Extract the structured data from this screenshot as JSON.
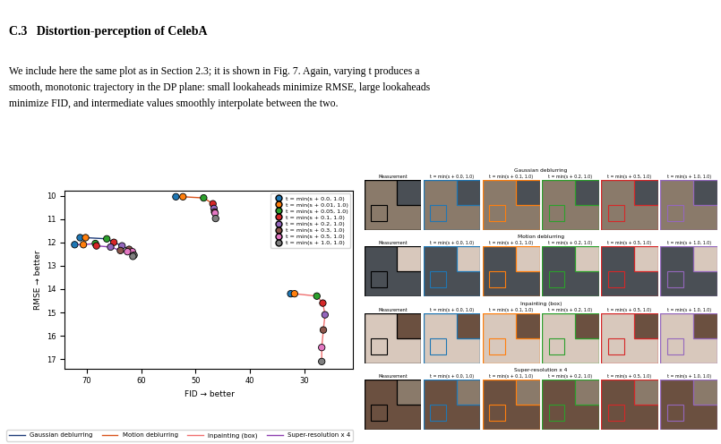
{
  "document": {
    "heading": "C.3   Distortion-perception of CelebA",
    "paragraph": [
      "We include here the same plot as in Section 2.3; it is shown in Fig. 7. Again, varying t produces a",
      "smooth, monotonic trajectory in the DP plane: small lookaheads minimize RMSE, large lookaheads",
      "minimize FID, and intermediate values smoothly interpolate between the two."
    ]
  },
  "chart_data": {
    "type": "line",
    "marker": "o",
    "xlabel": "FID → better",
    "ylabel": "RMSE → better",
    "xlim": [
      74,
      21
    ],
    "ylim": [
      17.4,
      9.8
    ],
    "xticks": [
      70,
      60,
      50,
      40,
      30
    ],
    "yticks": [
      10,
      11,
      12,
      13,
      14,
      15,
      16,
      17
    ],
    "grid": false,
    "legend": "upper right",
    "point_labels": [
      {
        "name": "t = min(s + 0.0, 1.0)",
        "color": "#1f77b4"
      },
      {
        "name": "t = min(s + 0.01, 1.0)",
        "color": "#ff7f0e"
      },
      {
        "name": "t = min(s + 0.05, 1.0)",
        "color": "#2ca02c"
      },
      {
        "name": "t = min(s + 0.1, 1.0)",
        "color": "#d62728"
      },
      {
        "name": "t = min(s + 0.2, 1.0)",
        "color": "#9467bd"
      },
      {
        "name": "t = min(s + 0.3, 1.0)",
        "color": "#8c564b"
      },
      {
        "name": "t = min(s + 0.5, 1.0)",
        "color": "#e377c2"
      },
      {
        "name": "t = min(s + 1.0, 1.0)",
        "color": "#7f7f7f"
      }
    ],
    "series": [
      {
        "name": "Gaussian deblurring",
        "color": "#1f3d7a",
        "x": [
          71.2,
          70.2,
          66.3,
          65.0,
          63.5,
          62.2,
          61.6,
          61.3
        ],
        "values": [
          11.8,
          11.8,
          11.85,
          12.0,
          12.15,
          12.3,
          12.4,
          12.55
        ]
      },
      {
        "name": "Motion deblurring",
        "color": "#d9541e",
        "x": [
          53.6,
          52.3,
          48.5,
          46.8,
          46.6,
          46.5,
          46.4,
          46.3
        ],
        "values": [
          10.05,
          10.05,
          10.1,
          10.35,
          10.55,
          10.7,
          10.75,
          10.98
        ]
      },
      {
        "name": "Inpainting (box)",
        "color": "#f07070",
        "x": [
          32.5,
          31.8,
          27.7,
          26.6,
          26.2,
          26.5,
          26.8,
          26.8
        ],
        "values": [
          14.2,
          14.2,
          14.3,
          14.6,
          15.1,
          15.75,
          16.5,
          17.1
        ]
      },
      {
        "name": "Super-resolution x 4",
        "color": "#8e3fb0",
        "x": [
          72.2,
          70.6,
          68.4,
          68.2,
          65.6,
          63.8,
          62.5,
          61.5
        ],
        "values": [
          12.1,
          12.1,
          12.05,
          12.15,
          12.2,
          12.35,
          12.4,
          12.6
        ]
      }
    ]
  },
  "figure_panel": {
    "rows": [
      "Gaussian deblurring",
      "Motion deblurring",
      "Inpainting (box)",
      "Super-resolution x 4"
    ],
    "columns": [
      {
        "title": "Measurement",
        "color": "#000000"
      },
      {
        "title": "t = min(s + 0.0, 1.0)",
        "color": "#1f77b4"
      },
      {
        "title": "t = min(s + 0.1, 1.0)",
        "color": "#ff7f0e"
      },
      {
        "title": "t = min(s + 0.2, 1.0)",
        "color": "#2ca02c"
      },
      {
        "title": "t = min(s + 0.5, 1.0)",
        "color": "#d62728"
      },
      {
        "title": "t = min(s + 1.0, 1.0)",
        "color": "#9467bd"
      }
    ]
  }
}
